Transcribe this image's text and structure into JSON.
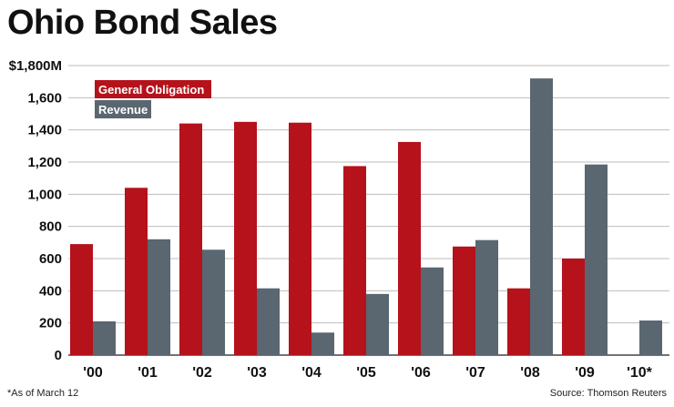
{
  "chart_data": {
    "type": "bar",
    "title": "Ohio Bond Sales",
    "categories": [
      "'00",
      "'01",
      "'02",
      "'03",
      "'04",
      "'05",
      "'06",
      "'07",
      "'08",
      "'09",
      "'10*"
    ],
    "series": [
      {
        "name": "General Obligation",
        "color": "#b5121b",
        "values": [
          690,
          1040,
          1440,
          1450,
          1445,
          1175,
          1325,
          675,
          415,
          600,
          0
        ]
      },
      {
        "name": "Revenue",
        "color": "#5a6670",
        "values": [
          210,
          720,
          655,
          415,
          140,
          380,
          545,
          715,
          1720,
          1185,
          215
        ]
      }
    ],
    "yticks": [
      "$1,800M",
      "1,600",
      "1,400",
      "1,200",
      "1,000",
      "800",
      "600",
      "400",
      "200",
      "0"
    ],
    "ylim": [
      0,
      1800
    ],
    "legend": "top-left",
    "grid": true
  },
  "footnote": "*As of March 12",
  "source": "Source: Thomson Reuters"
}
